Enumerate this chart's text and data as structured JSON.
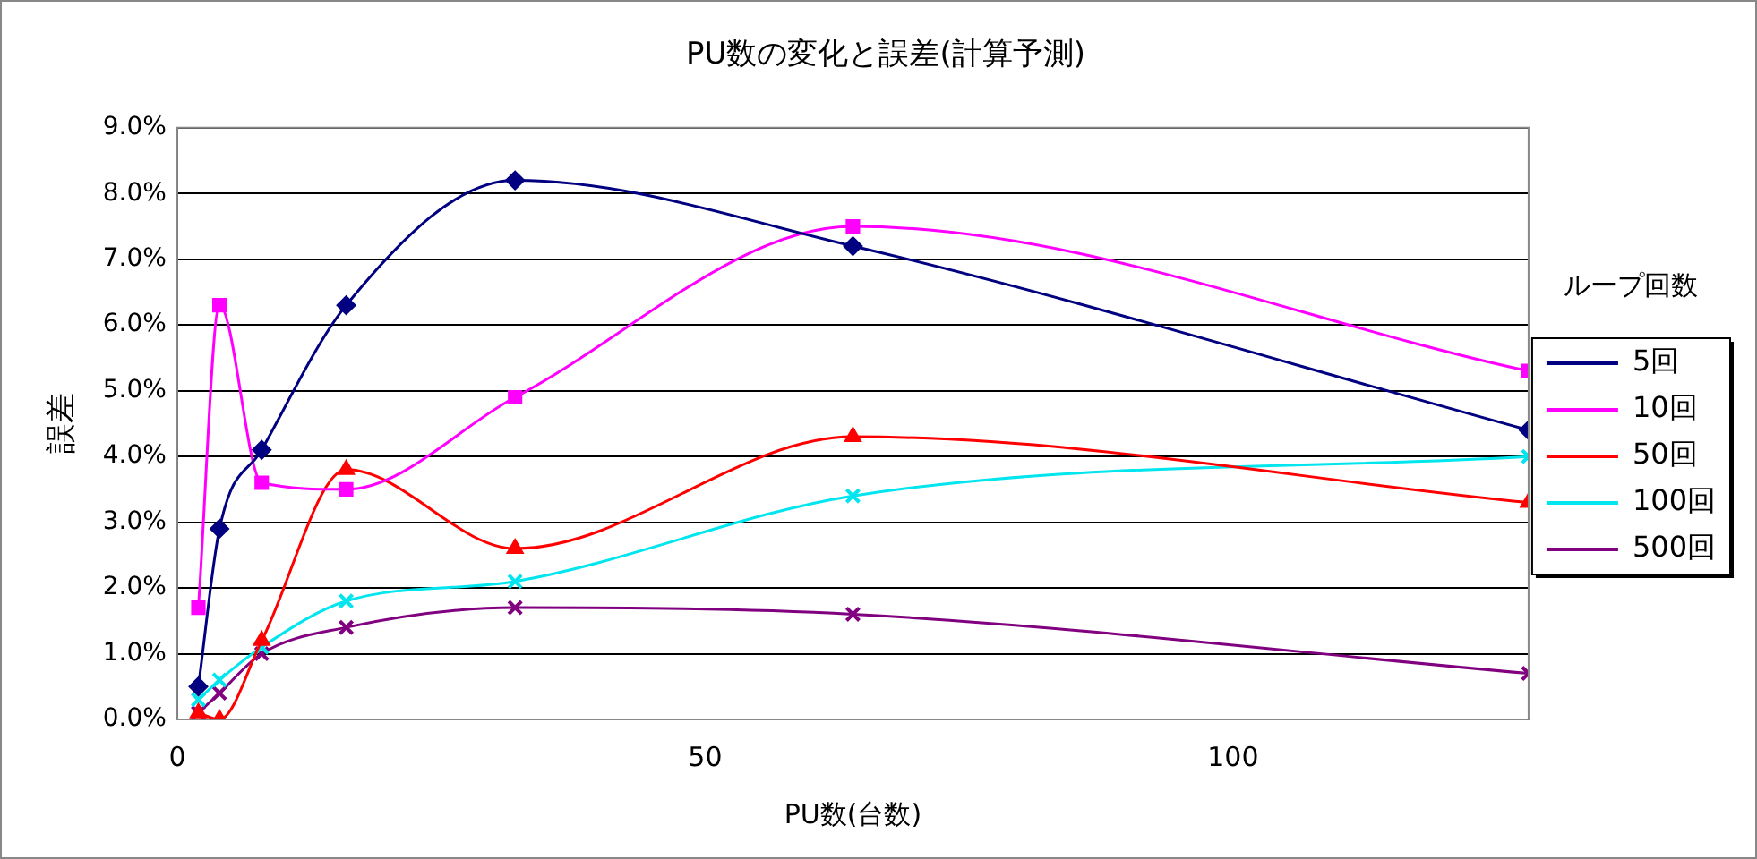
{
  "chart_data": {
    "type": "line",
    "title": "PU数の変化と誤差(計算予測)",
    "xlabel": "PU数(台数)",
    "ylabel": "誤差",
    "legend_title": "ループ回数",
    "x": [
      2,
      4,
      8,
      16,
      32,
      64,
      128
    ],
    "series": [
      {
        "name": "5回",
        "color": "#000080",
        "marker": "diamond",
        "values": [
          0.5,
          2.9,
          4.1,
          6.3,
          8.2,
          7.2,
          4.4
        ]
      },
      {
        "name": "10回",
        "color": "#ff00ff",
        "marker": "square",
        "values": [
          1.7,
          6.3,
          3.6,
          3.5,
          4.9,
          7.5,
          5.3
        ]
      },
      {
        "name": "50回",
        "color": "#ff0000",
        "marker": "triangle",
        "values": [
          0.1,
          0.0,
          1.2,
          3.8,
          2.6,
          4.3,
          3.3
        ]
      },
      {
        "name": "100回",
        "color": "#00e5ee",
        "marker": "cross",
        "values": [
          0.3,
          0.6,
          1.1,
          1.8,
          2.1,
          3.4,
          4.0
        ]
      },
      {
        "name": "500回",
        "color": "#800080",
        "marker": "cross",
        "values": [
          0.1,
          0.4,
          1.0,
          1.4,
          1.7,
          1.6,
          0.7
        ]
      }
    ],
    "xlim": [
      0,
      128
    ],
    "xticks": [
      0,
      50,
      100
    ],
    "ylim": [
      0,
      9
    ],
    "yticks": [
      {
        "value": 0,
        "label": "0.0%"
      },
      {
        "value": 1,
        "label": "1.0%"
      },
      {
        "value": 2,
        "label": "2.0%"
      },
      {
        "value": 3,
        "label": "3.0%"
      },
      {
        "value": 4,
        "label": "4.0%"
      },
      {
        "value": 5,
        "label": "5.0%"
      },
      {
        "value": 6,
        "label": "6.0%"
      },
      {
        "value": 7,
        "label": "7.0%"
      },
      {
        "value": 8,
        "label": "8.0%"
      },
      {
        "value": 9,
        "label": "9.0%"
      }
    ],
    "grid": "y",
    "legend": "right",
    "line_style": "solid"
  }
}
